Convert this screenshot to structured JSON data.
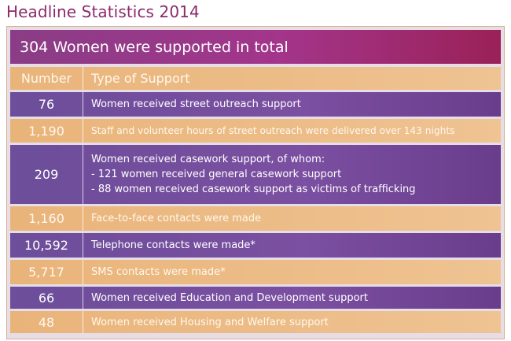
{
  "title": "Headline Statistics 2014",
  "banner": "304 Women were supported in total",
  "header": {
    "number": "Number",
    "type": "Type of Support"
  },
  "rows": [
    {
      "number": "76",
      "text": "Women received street outreach support"
    },
    {
      "number": "1,190",
      "text": "Staff and volunteer hours of street outreach were delivered over 143 nights"
    },
    {
      "number": "209",
      "lines": [
        "Women received casework support, of whom:",
        "- 121 women received general casework support",
        "- 88 women received casework support as victims of trafficking"
      ]
    },
    {
      "number": "1,160",
      "text": "Face-to-face contacts were made"
    },
    {
      "number": "10,592",
      "text": "Telephone contacts were made*"
    },
    {
      "number": "5,717",
      "text": "SMS contacts were made*"
    },
    {
      "number": "66",
      "text": "Women received Education and Development support"
    },
    {
      "number": "48",
      "text": "Women received Housing and Welfare support"
    }
  ],
  "colors": {
    "title": "#8c2a6b",
    "orange": "#e9b47a",
    "purple": "#6c4e9a",
    "banner": "#9a2158"
  }
}
